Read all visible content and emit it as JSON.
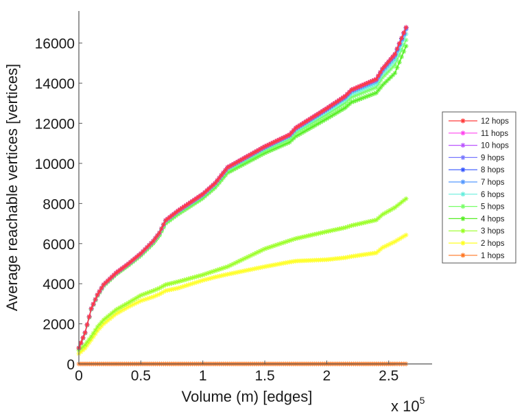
{
  "chart_data": {
    "type": "line",
    "title": "",
    "xlabel": "Volume (m) [edges]",
    "ylabel": "Average reachable vertices [vertices]",
    "x_multiplier_label": "x 10",
    "x_multiplier_exponent": "5",
    "xlim": [
      0,
      2.85
    ],
    "ylim": [
      0,
      17600
    ],
    "grid": false,
    "legend_position": "outside-right",
    "x_ticks": [
      0,
      0.5,
      1,
      1.5,
      2,
      2.5
    ],
    "x_tick_labels": [
      "0",
      "0.5",
      "1",
      "1.5",
      "2",
      "2.5"
    ],
    "y_ticks": [
      0,
      2000,
      4000,
      6000,
      8000,
      10000,
      12000,
      14000,
      16000
    ],
    "y_tick_labels": [
      "0",
      "2000",
      "4000",
      "6000",
      "8000",
      "10000",
      "12000",
      "14000",
      "16000"
    ],
    "x": [
      0,
      0.05,
      0.1,
      0.15,
      0.2,
      0.3,
      0.4,
      0.5,
      0.6,
      0.65,
      0.7,
      0.8,
      1.0,
      1.1,
      1.2,
      1.5,
      1.7,
      1.75,
      2.0,
      2.15,
      2.2,
      2.4,
      2.45,
      2.55,
      2.64
    ],
    "series": [
      {
        "name": "12 hops",
        "color": "#ff3b3b",
        "values": [
          800,
          1560,
          2760,
          3450,
          3960,
          4540,
          5000,
          5510,
          6130,
          6540,
          7160,
          7640,
          8470,
          9020,
          9800,
          10840,
          11430,
          11770,
          12740,
          13360,
          13670,
          14200,
          14720,
          15450,
          16780
        ]
      },
      {
        "name": "11 hops",
        "color": "#ff44ee",
        "values": [
          800,
          1560,
          2760,
          3450,
          3960,
          4540,
          5000,
          5510,
          6130,
          6540,
          7160,
          7640,
          8470,
          9020,
          9800,
          10840,
          11430,
          11770,
          12740,
          13360,
          13670,
          14200,
          14720,
          15450,
          16780
        ]
      },
      {
        "name": "10 hops",
        "color": "#bb55ff",
        "values": [
          800,
          1560,
          2760,
          3450,
          3960,
          4540,
          5000,
          5510,
          6130,
          6540,
          7160,
          7640,
          8470,
          9020,
          9800,
          10840,
          11430,
          11770,
          12740,
          13360,
          13670,
          14200,
          14720,
          15450,
          16780
        ]
      },
      {
        "name": "9 hops",
        "color": "#7777ff",
        "values": [
          800,
          1560,
          2760,
          3450,
          3960,
          4540,
          5000,
          5510,
          6130,
          6540,
          7160,
          7640,
          8470,
          9020,
          9800,
          10840,
          11430,
          11770,
          12740,
          13360,
          13670,
          14200,
          14720,
          15450,
          16780
        ]
      },
      {
        "name": "8 hops",
        "color": "#3355ff",
        "values": [
          800,
          1560,
          2760,
          3450,
          3960,
          4540,
          5000,
          5510,
          6130,
          6540,
          7160,
          7640,
          8470,
          9020,
          9800,
          10830,
          11420,
          11760,
          12720,
          13340,
          13650,
          14180,
          14700,
          15420,
          16750
        ]
      },
      {
        "name": "7 hops",
        "color": "#5599ff",
        "values": [
          800,
          1550,
          2750,
          3440,
          3950,
          4530,
          4990,
          5500,
          6120,
          6530,
          7150,
          7620,
          8440,
          9000,
          9770,
          10800,
          11390,
          11720,
          12680,
          13290,
          13590,
          14110,
          14630,
          15340,
          16680
        ]
      },
      {
        "name": "6 hops",
        "color": "#66eedd",
        "values": [
          800,
          1550,
          2740,
          3430,
          3940,
          4520,
          4980,
          5480,
          6100,
          6510,
          7120,
          7590,
          8410,
          8960,
          9730,
          10750,
          11330,
          11650,
          12590,
          13180,
          13470,
          13980,
          14480,
          15150,
          16450
        ]
      },
      {
        "name": "5 hops",
        "color": "#77ff66",
        "values": [
          790,
          1540,
          2730,
          3420,
          3920,
          4500,
          4950,
          5450,
          6060,
          6460,
          7070,
          7540,
          8350,
          8890,
          9650,
          10650,
          11220,
          11530,
          12440,
          13020,
          13300,
          13800,
          14280,
          14920,
          16150
        ]
      },
      {
        "name": "4 hops",
        "color": "#55ee22",
        "values": [
          780,
          1530,
          2720,
          3400,
          3900,
          4470,
          4920,
          5410,
          6010,
          6410,
          7010,
          7470,
          8270,
          8800,
          9540,
          10520,
          11060,
          11350,
          12230,
          12780,
          13050,
          13520,
          13900,
          14500,
          15850
        ]
      },
      {
        "name": "3 hops",
        "color": "#99ff22",
        "values": [
          680,
          950,
          1370,
          1850,
          2200,
          2700,
          3050,
          3420,
          3650,
          3780,
          3950,
          4100,
          4440,
          4650,
          4850,
          5740,
          6150,
          6250,
          6600,
          6800,
          6900,
          7180,
          7450,
          7800,
          8240
        ]
      },
      {
        "name": "2 hops",
        "color": "#ffff22",
        "values": [
          510,
          780,
          1200,
          1650,
          2000,
          2500,
          2850,
          3150,
          3350,
          3480,
          3650,
          3780,
          4170,
          4330,
          4470,
          4850,
          5080,
          5130,
          5200,
          5300,
          5360,
          5540,
          5800,
          6100,
          6430
        ]
      },
      {
        "name": "1 hops",
        "color": "#ff7722",
        "values": [
          1,
          1,
          1,
          1,
          1,
          1,
          1,
          1,
          1,
          1,
          1,
          1,
          1,
          1,
          1,
          1,
          1,
          1,
          1,
          1,
          1,
          1,
          1,
          1,
          1
        ]
      }
    ]
  }
}
